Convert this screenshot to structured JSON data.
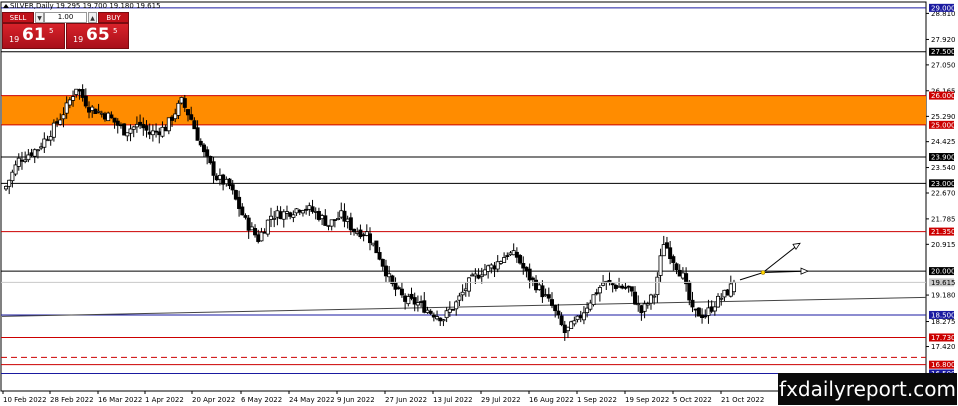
{
  "header": {
    "symbol_line": "SILVER,Daily  19.295 19.700 19.180 19.615"
  },
  "trade_panel": {
    "sell_label": "SELL",
    "buy_label": "BUY",
    "lot_value": "1.00",
    "down_arrow": "▼",
    "up_arrow": "▲",
    "sell_price": {
      "small": "19",
      "big": "61",
      "sup": "5"
    },
    "buy_price": {
      "small": "19",
      "big": "65",
      "sup": "5"
    }
  },
  "watermark": "fxdailyreport.com",
  "colors": {
    "resistance_zone": "#ff8c00",
    "red_level": "#cc0000",
    "blue_level": "#1a1aa0",
    "black_level": "#000000",
    "current_price": "#c8c8c8",
    "candle": "#000000"
  },
  "chart_data": {
    "type": "candlestick",
    "instrument": "SILVER",
    "timeframe": "Daily",
    "ohlc_last": {
      "open": 19.295,
      "high": 19.7,
      "low": 19.18,
      "close": 19.615
    },
    "y_ticks": [
      "28.810",
      "27.920",
      "27.050",
      "26.165",
      "25.290",
      "24.425",
      "23.540",
      "22.670",
      "21.785",
      "20.915",
      "19.180",
      "18.275",
      "17.420"
    ],
    "x_ticks": [
      "10 Feb 2022",
      "28 Feb 2022",
      "16 Mar 2022",
      "1 Apr 2022",
      "20 Apr 2022",
      "6 May 2022",
      "24 May 2022",
      "9 Jun 2022",
      "27 Jun 2022",
      "13 Jul 2022",
      "29 Jul 2022",
      "16 Aug 2022",
      "1 Sep 2022",
      "19 Sep 2022",
      "5 Oct 2022",
      "21 Oct 2022"
    ],
    "ylim": [
      15.9,
      29.2
    ],
    "levels": [
      {
        "value": 29.0,
        "label": "29.000",
        "kind": "blue"
      },
      {
        "value": 27.5,
        "label": "27.500",
        "kind": "black"
      },
      {
        "value": 26.0,
        "label": "26.000",
        "kind": "red"
      },
      {
        "value": 25.0,
        "label": "25.000",
        "kind": "red"
      },
      {
        "value": 23.9,
        "label": "23.900",
        "kind": "black"
      },
      {
        "value": 23.0,
        "label": "23.000",
        "kind": "black"
      },
      {
        "value": 21.35,
        "label": "21.350",
        "kind": "red"
      },
      {
        "value": 20.0,
        "label": "20.000",
        "kind": "black"
      },
      {
        "value": 19.615,
        "label": "19.615",
        "kind": "current"
      },
      {
        "value": 18.5,
        "label": "18.500",
        "kind": "blue"
      },
      {
        "value": 17.73,
        "label": "17.730",
        "kind": "red"
      },
      {
        "value": 16.8,
        "label": "16.800",
        "kind": "red"
      },
      {
        "value": 16.5,
        "label": "16.500",
        "kind": "blue"
      }
    ],
    "zone": {
      "from": 25.0,
      "to": 26.0
    },
    "dashed_levels": [
      17.05
    ],
    "anchors": [
      [
        0,
        22.9
      ],
      [
        4,
        23.8
      ],
      [
        10,
        24.2
      ],
      [
        15,
        24.9
      ],
      [
        19,
        25.6
      ],
      [
        22,
        26.3
      ],
      [
        26,
        25.6
      ],
      [
        32,
        25.3
      ],
      [
        37,
        24.8
      ],
      [
        42,
        25.0
      ],
      [
        45,
        24.7
      ],
      [
        50,
        24.9
      ],
      [
        55,
        25.8
      ],
      [
        58,
        25.2
      ],
      [
        62,
        24.0
      ],
      [
        66,
        23.2
      ],
      [
        70,
        22.9
      ],
      [
        75,
        21.7
      ],
      [
        79,
        21.1
      ],
      [
        83,
        21.9
      ],
      [
        88,
        22.0
      ],
      [
        93,
        22.2
      ],
      [
        97,
        22.0
      ],
      [
        101,
        21.6
      ],
      [
        105,
        21.9
      ],
      [
        109,
        21.4
      ],
      [
        113,
        21.3
      ],
      [
        117,
        20.5
      ],
      [
        121,
        19.5
      ],
      [
        125,
        19.0
      ],
      [
        129,
        18.9
      ],
      [
        133,
        18.6
      ],
      [
        137,
        18.4
      ],
      [
        141,
        18.9
      ],
      [
        145,
        19.6
      ],
      [
        149,
        20.0
      ],
      [
        153,
        20.2
      ],
      [
        157,
        20.6
      ],
      [
        160,
        20.5
      ],
      [
        163,
        19.9
      ],
      [
        167,
        19.4
      ],
      [
        171,
        18.8
      ],
      [
        175,
        17.9
      ],
      [
        179,
        18.3
      ],
      [
        183,
        19.0
      ],
      [
        187,
        19.6
      ],
      [
        191,
        19.5
      ],
      [
        195,
        19.4
      ],
      [
        199,
        18.6
      ],
      [
        203,
        19.2
      ],
      [
        206,
        21.0
      ],
      [
        209,
        20.4
      ],
      [
        212,
        19.8
      ],
      [
        215,
        18.6
      ],
      [
        219,
        18.5
      ],
      [
        222,
        18.9
      ],
      [
        226,
        19.3
      ],
      [
        228,
        19.6
      ]
    ]
  }
}
